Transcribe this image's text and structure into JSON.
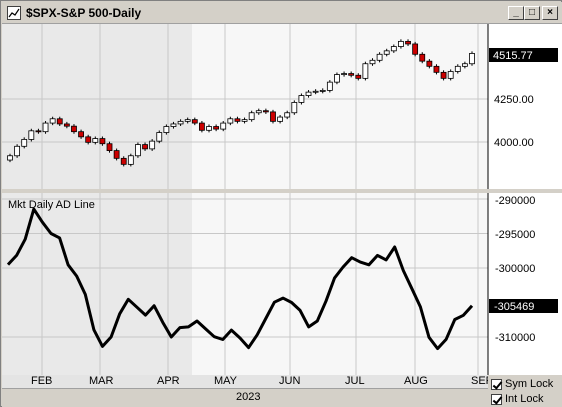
{
  "window": {
    "title": "$SPX-S&P 500-Daily",
    "min_glyph": "_",
    "max_glyph": "□",
    "close_glyph": "×"
  },
  "price_panel": {
    "last_value": "4515.77",
    "tick_labels": [
      "4250.00",
      "4000.00"
    ]
  },
  "ad_panel": {
    "title": "Mkt Daily AD Line",
    "last_value": "-305469",
    "tick_labels": [
      "-290000",
      "-295000",
      "-300000",
      "-310000"
    ]
  },
  "x_axis": {
    "months": [
      "FEB",
      "MAR",
      "APR",
      "MAY",
      "JUN",
      "JUL",
      "AUG",
      "SEP"
    ],
    "year": "2023"
  },
  "footer": {
    "sym_lock": "Sym Lock",
    "int_lock": "Int Lock"
  },
  "colors": {
    "up_candle": "#ffffff",
    "down_candle": "#cc0000",
    "last_value_bg": "#000000"
  },
  "chart_data": [
    {
      "type": "candlestick",
      "title": "$SPX-S&P 500-Daily",
      "series": [
        {
          "name": "$SPX",
          "close": [
            3920,
            3975,
            4015,
            4065,
            4060,
            4110,
            4135,
            4105,
            4092,
            4060,
            4030,
            3998,
            4020,
            3990,
            3950,
            3905,
            3870,
            3920,
            3985,
            3960,
            4005,
            4055,
            4090,
            4105,
            4120,
            4130,
            4110,
            4068,
            4090,
            4075,
            4110,
            4135,
            4120,
            4130,
            4170,
            4182,
            4175,
            4120,
            4145,
            4170,
            4230,
            4270,
            4290,
            4295,
            4300,
            4348,
            4392,
            4398,
            4388,
            4370,
            4455,
            4475,
            4510,
            4530,
            4555,
            4585,
            4570,
            4510,
            4470,
            4440,
            4405,
            4370,
            4410,
            4440,
            4455,
            4515
          ]
        }
      ],
      "y_ticks": [
        4000,
        4250
      ],
      "last_value": 4515.77
    },
    {
      "type": "line",
      "title": "Mkt Daily AD Line",
      "series": [
        {
          "name": "Mkt Daily AD Line",
          "values": [
            -299500,
            -298000,
            -296000,
            -292000,
            -293000,
            -295000,
            -296000,
            -299000,
            -301000,
            -304000,
            -309500,
            -311000,
            -310000,
            -307000,
            -304000,
            -305500,
            -307000,
            -306000,
            -307500,
            -310000,
            -309000,
            -308000,
            -307500,
            -309000,
            -310500,
            -310000,
            -309000,
            -310500,
            -311000,
            -309500,
            -307500,
            -305500,
            -304000,
            -305000,
            -306500,
            -308000,
            -307500,
            -305000,
            -302000,
            -299500,
            -298500,
            -299500,
            -299000,
            -298000,
            -299000,
            -297500,
            -300000,
            -303000,
            -306000,
            -309500,
            -311500,
            -310500,
            -308000,
            -306500,
            -305469
          ]
        }
      ],
      "y_ticks": [
        -310000,
        -300000,
        -295000,
        -290000
      ],
      "last_value": -305469
    }
  ]
}
